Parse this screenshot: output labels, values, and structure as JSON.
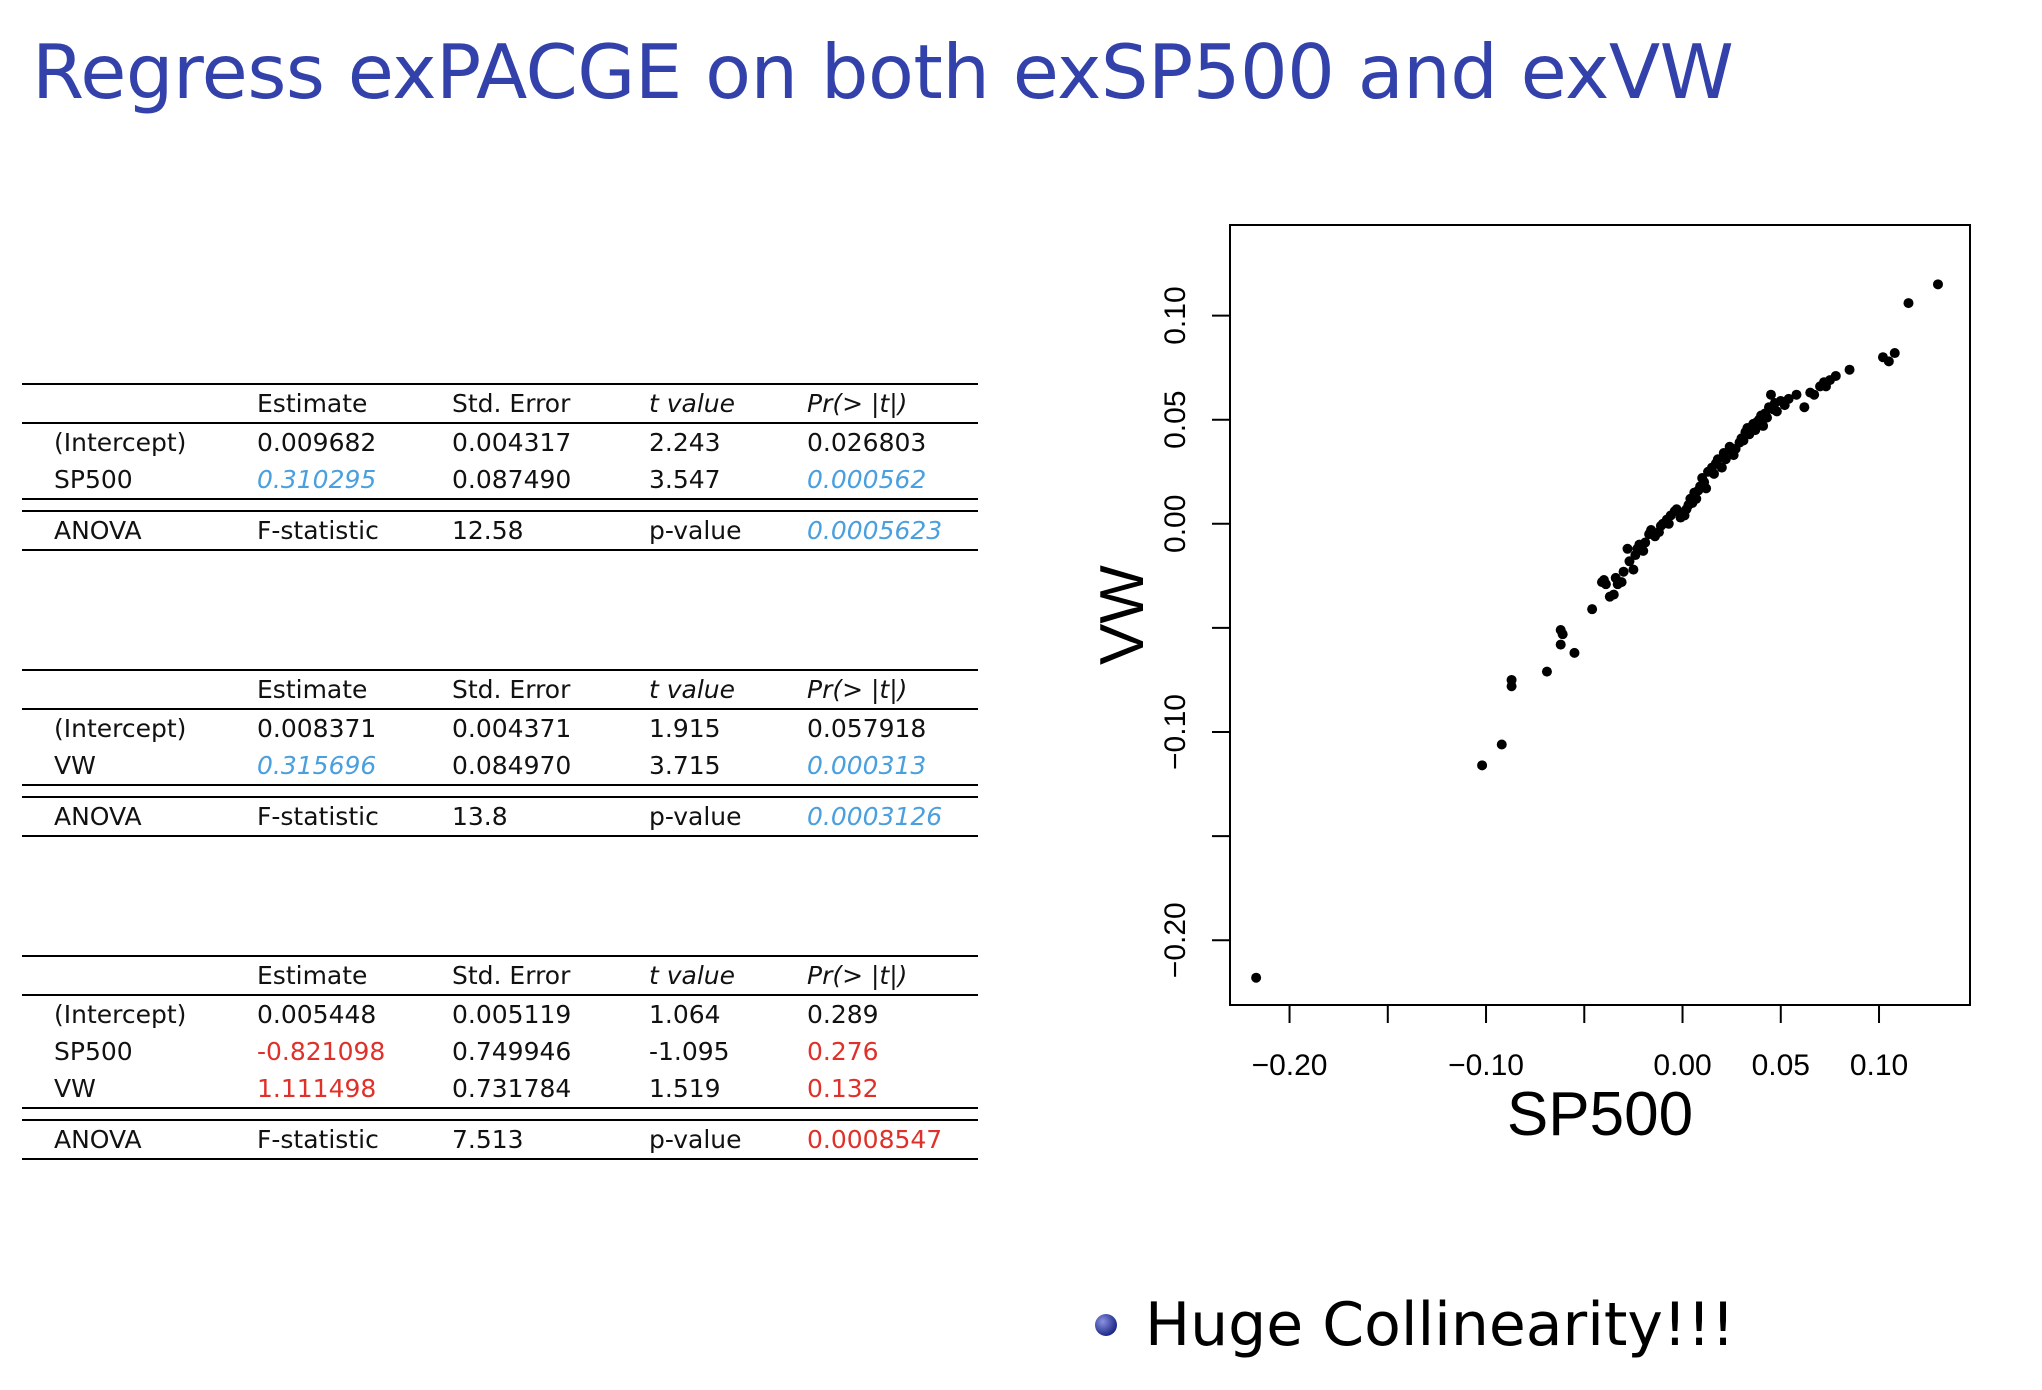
{
  "title": "Regress exPACGE on both exSP500 and exVW",
  "header": [
    "Estimate",
    "Std.  Error",
    "t value",
    "Pr(> |t|)"
  ],
  "tables": [
    {
      "rows": [
        {
          "name": "(Intercept)",
          "estimate": "0.009682",
          "std_error": "0.004317",
          "t_value": "2.243",
          "p": "0.026803"
        },
        {
          "name": "SP500",
          "estimate": "0.310295",
          "std_error": "0.087490",
          "t_value": "3.547",
          "p": "0.000562"
        }
      ],
      "anova": {
        "label": "ANOVA",
        "f_label": "F-statistic",
        "f_value": "12.58",
        "p_label": "p-value",
        "p_value": "0.0005623"
      }
    },
    {
      "rows": [
        {
          "name": "(Intercept)",
          "estimate": "0.008371",
          "std_error": "0.004371",
          "t_value": "1.915",
          "p": "0.057918"
        },
        {
          "name": "VW",
          "estimate": "0.315696",
          "std_error": "0.084970",
          "t_value": "3.715",
          "p": "0.000313"
        }
      ],
      "anova": {
        "label": "ANOVA",
        "f_label": "F-statistic",
        "f_value": "13.8",
        "p_label": "p-value",
        "p_value": "0.0003126"
      }
    },
    {
      "rows": [
        {
          "name": "(Intercept)",
          "estimate": "0.005448",
          "std_error": "0.005119",
          "t_value": "1.064",
          "p": "0.289"
        },
        {
          "name": "SP500",
          "estimate": "-0.821098",
          "std_error": "0.749946",
          "t_value": "-1.095",
          "p": "0.276"
        },
        {
          "name": "VW",
          "estimate": "1.111498",
          "std_error": "0.731784",
          "t_value": "1.519",
          "p": "0.132"
        }
      ],
      "anova": {
        "label": "ANOVA",
        "f_label": "F-statistic",
        "f_value": "7.513",
        "p_label": "p-value",
        "p_value": "0.0008547"
      }
    }
  ],
  "colors": {
    "title": "#3341aa",
    "highlight_blue": "#4a9fde",
    "highlight_red": "#e0302a"
  },
  "bullet": {
    "text": "Huge Collinearity!!!"
  },
  "chart_data": {
    "type": "scatter",
    "title": "",
    "xlabel": "SP500",
    "ylabel": "VW",
    "xlim": [
      -0.2303,
      0.1463
    ],
    "ylim": [
      -0.2311,
      0.1435
    ],
    "x_ticks": [
      -0.2,
      -0.15,
      -0.1,
      -0.05,
      0.0,
      0.05,
      0.1
    ],
    "x_tick_labels": [
      "−0.20",
      "",
      "−0.10",
      "",
      "0.00",
      "0.05",
      "0.10"
    ],
    "y_ticks": [
      -0.2,
      -0.15,
      -0.1,
      -0.05,
      0.0,
      0.05,
      0.1
    ],
    "y_tick_labels": [
      "−0.20",
      "",
      "−0.10",
      "",
      "0.00",
      "0.05",
      "0.10"
    ],
    "grid": false,
    "x": [
      -0.217,
      -0.102,
      -0.092,
      -0.087,
      -0.087,
      -0.069,
      -0.062,
      -0.061,
      -0.062,
      -0.055,
      -0.046,
      -0.041,
      -0.04,
      -0.039,
      -0.037,
      -0.035,
      -0.034,
      -0.033,
      -0.031,
      -0.03,
      -0.028,
      -0.027,
      -0.025,
      -0.024,
      -0.023,
      -0.022,
      -0.02,
      -0.019,
      -0.017,
      -0.016,
      -0.014,
      -0.012,
      -0.011,
      -0.01,
      -0.008,
      -0.007,
      -0.006,
      -0.004,
      -0.003,
      -0.001,
      0.0,
      0.001,
      0.002,
      0.003,
      0.004,
      0.005,
      0.006,
      0.007,
      0.008,
      0.009,
      0.01,
      0.011,
      0.012,
      0.013,
      0.015,
      0.016,
      0.017,
      0.018,
      0.02,
      0.021,
      0.022,
      0.024,
      0.025,
      0.026,
      0.027,
      0.029,
      0.03,
      0.031,
      0.032,
      0.033,
      0.034,
      0.035,
      0.036,
      0.037,
      0.038,
      0.039,
      0.04,
      0.041,
      0.042,
      0.043,
      0.044,
      0.045,
      0.046,
      0.047,
      0.048,
      0.05,
      0.052,
      0.054,
      0.058,
      0.062,
      0.065,
      0.067,
      0.07,
      0.072,
      0.073,
      0.075,
      0.078,
      0.085,
      0.102,
      0.105,
      0.108,
      0.115,
      0.13
    ],
    "y": [
      -0.218,
      -0.116,
      -0.106,
      -0.078,
      -0.075,
      -0.071,
      -0.058,
      -0.053,
      -0.051,
      -0.062,
      -0.041,
      -0.028,
      -0.027,
      -0.029,
      -0.035,
      -0.034,
      -0.026,
      -0.029,
      -0.028,
      -0.023,
      -0.012,
      -0.018,
      -0.022,
      -0.015,
      -0.012,
      -0.01,
      -0.013,
      -0.009,
      -0.005,
      -0.003,
      -0.006,
      -0.004,
      -0.001,
      0.0,
      0.002,
      0.0,
      0.004,
      0.006,
      0.007,
      0.003,
      0.005,
      0.004,
      0.007,
      0.009,
      0.012,
      0.01,
      0.015,
      0.012,
      0.016,
      0.018,
      0.022,
      0.02,
      0.017,
      0.025,
      0.027,
      0.024,
      0.029,
      0.031,
      0.027,
      0.034,
      0.031,
      0.037,
      0.035,
      0.033,
      0.036,
      0.039,
      0.041,
      0.04,
      0.044,
      0.046,
      0.043,
      0.046,
      0.048,
      0.045,
      0.049,
      0.05,
      0.052,
      0.047,
      0.053,
      0.051,
      0.056,
      0.062,
      0.055,
      0.058,
      0.054,
      0.059,
      0.057,
      0.06,
      0.062,
      0.056,
      0.063,
      0.062,
      0.066,
      0.068,
      0.066,
      0.069,
      0.071,
      0.074,
      0.08,
      0.078,
      0.082,
      0.106,
      0.115
    ]
  }
}
